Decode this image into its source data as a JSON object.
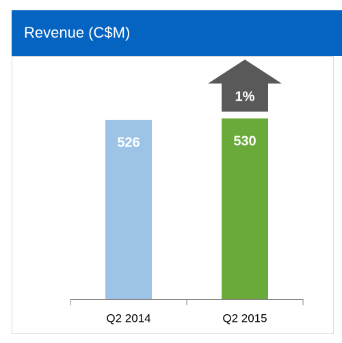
{
  "chart_data": {
    "type": "bar",
    "title": "Revenue (C$M)",
    "categories": [
      "Q2 2014",
      "Q2 2015"
    ],
    "series": [
      {
        "values": [
          526,
          530
        ],
        "colors": [
          "#9dc3e6",
          "#6aaa3a"
        ]
      }
    ],
    "annotation": "1%",
    "annotation_color": "#595959",
    "header_color": "#0563c1"
  }
}
